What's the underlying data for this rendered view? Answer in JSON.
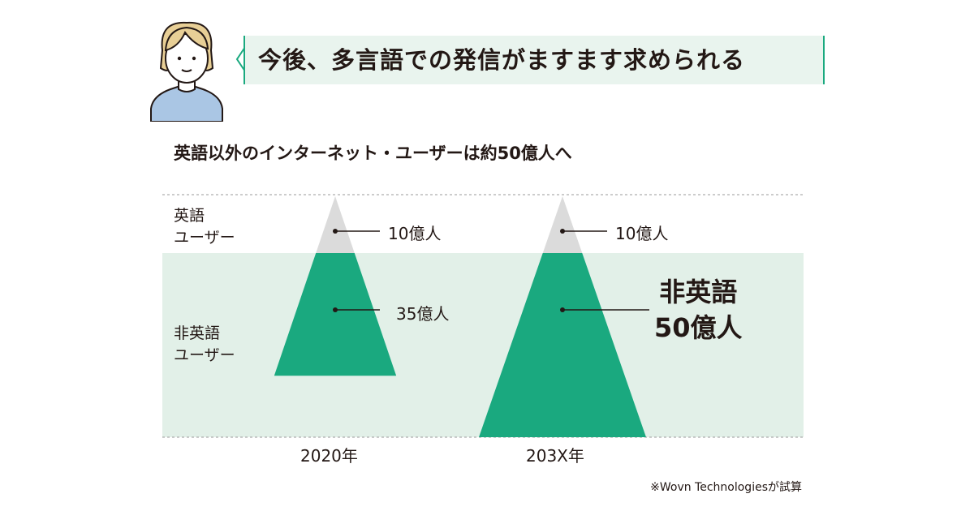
{
  "header": {
    "bubble_text": "今後、多言語での発信がますます求められる"
  },
  "chart_data": {
    "type": "area",
    "title": "英語以外のインターネット・ユーザーは約50億人へ",
    "row_labels": {
      "english_line1": "英語",
      "english_line2": "ユーザー",
      "non_english_line1": "非英語",
      "non_english_line2": "ユーザー"
    },
    "categories": [
      "2020年",
      "203X年"
    ],
    "series": [
      {
        "name": "英語ユーザー",
        "values": [
          10,
          10
        ],
        "value_labels": [
          "10億人",
          "10億人"
        ],
        "color": "#dbdbdb"
      },
      {
        "name": "非英語ユーザー",
        "values": [
          35,
          50
        ],
        "value_labels": [
          "35億人",
          "非英語 50億人"
        ],
        "color": "#1aa97f"
      }
    ],
    "big_label_line1": "非英語",
    "big_label_line2": "50億人",
    "unit": "億人",
    "colors": {
      "band": "#e2f0e8",
      "non_english": "#1aa97f",
      "english": "#dbdbdb",
      "dashed_line": "#9a9a9a",
      "avatar_shirt": "#aac6e4",
      "avatar_hair": "#e8cf96"
    },
    "source": "※Wovn Technologiesが試算"
  }
}
